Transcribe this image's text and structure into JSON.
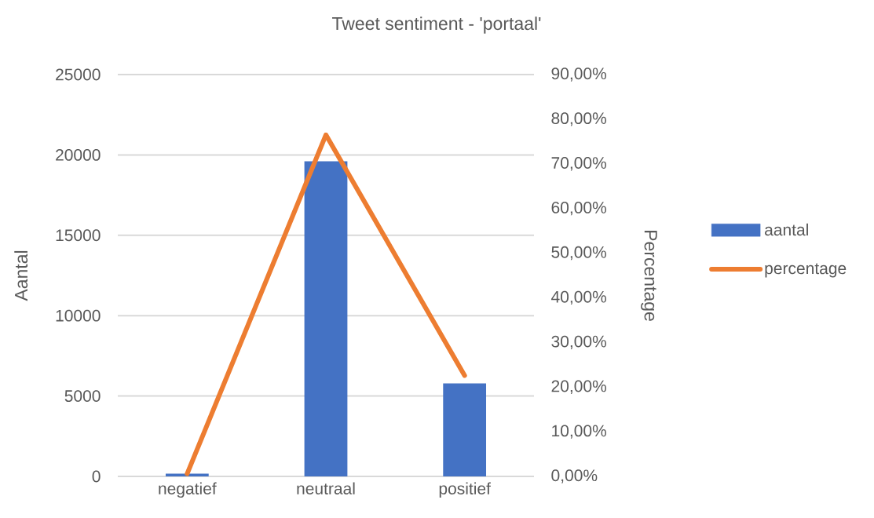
{
  "chart_data": {
    "type": "bar",
    "title": "Tweet sentiment - 'portaal'",
    "ylabel": "Aantal",
    "y2label": "Percentage",
    "categories": [
      "negatief",
      "neutraal",
      "positief"
    ],
    "series": [
      {
        "name": "aantal",
        "color": "#4472c4",
        "values": [
          170,
          19600,
          5780
        ]
      },
      {
        "name": "percentage",
        "type": "line",
        "axis": "y2",
        "color": "#ed7d31",
        "values": [
          0.6,
          76.5,
          22.6
        ]
      }
    ],
    "ylim": [
      0,
      25000
    ],
    "yticks": [
      0,
      5000,
      10000,
      15000,
      20000,
      25000
    ],
    "y2lim": [
      0,
      90
    ],
    "y2ticks": [
      {
        "value": 0,
        "label": "0,00%"
      },
      {
        "value": 10,
        "label": "10,00%"
      },
      {
        "value": 20,
        "label": "20,00%"
      },
      {
        "value": 30,
        "label": "30,00%"
      },
      {
        "value": 40,
        "label": "40,00%"
      },
      {
        "value": 50,
        "label": "50,00%"
      },
      {
        "value": 60,
        "label": "60,00%"
      },
      {
        "value": 70,
        "label": "70,00%"
      },
      {
        "value": 80,
        "label": "80,00%"
      },
      {
        "value": 90,
        "label": "90,00%"
      }
    ],
    "grid": "y",
    "legend": "right",
    "marker": "none",
    "line_style": "solid"
  }
}
